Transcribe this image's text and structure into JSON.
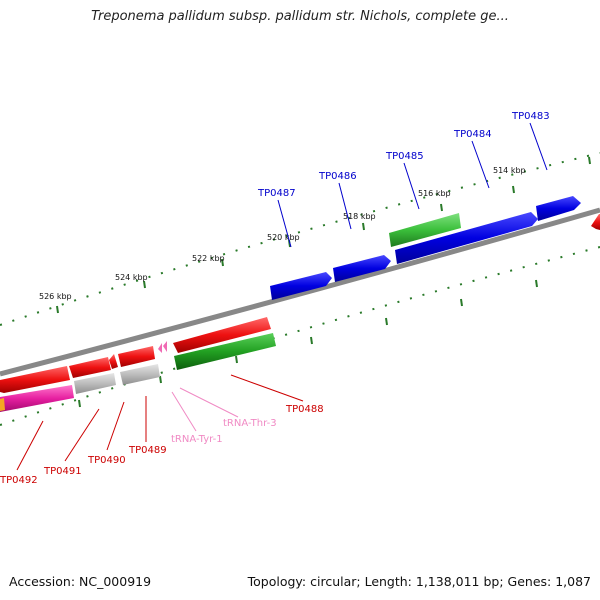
{
  "title": "Treponema pallidum subsp. pallidum str. Nichols, complete ge...",
  "footer": {
    "accession": "Accession: NC_000919",
    "summary": "Topology: circular; Length: 1,138,011 bp; Genes: 1,087"
  },
  "colors": {
    "backbone": "#888888",
    "ticks": "#2a7a2a",
    "forward_gene": "#0000e0",
    "forward_gene_alt": "#3bbf3b",
    "reverse_gene": "#ee1111",
    "reverse_gene_alt": "#22a022",
    "grey_gene": "#b8b8b8",
    "magenta_gene": "#e61fa0",
    "trna_gene": "#f06ab4",
    "upper_label": "#0000cc",
    "lower_label": "#cc0000",
    "trna_label": "#f08ac4"
  },
  "scale_labels": [
    "514 kbp",
    "516 kbp",
    "518 kbp",
    "520 kbp",
    "522 kbp",
    "524 kbp",
    "526 kbp"
  ],
  "upper_genes": [
    "TP0483",
    "TP0484",
    "TP0485",
    "TP0486",
    "TP0487"
  ],
  "lower_genes": [
    "TP0488",
    "TP0489",
    "TP0490",
    "TP0491",
    "TP0492"
  ],
  "trna_genes": [
    "tRNA-Thr-3",
    "tRNA-Tyr-1"
  ]
}
